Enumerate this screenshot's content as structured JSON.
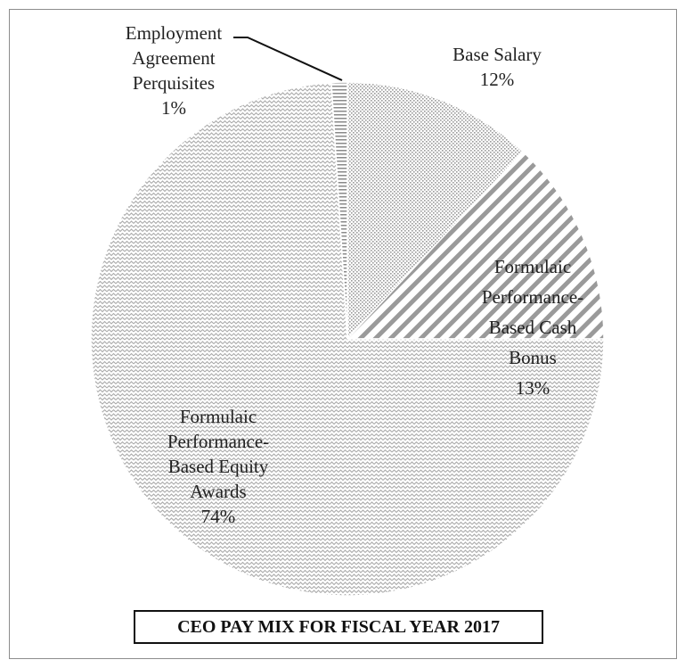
{
  "chart_data": {
    "type": "pie",
    "title": "CEO PAY MIX FOR FISCAL YEAR 2017",
    "slices": [
      {
        "name": "Base Salary",
        "value": 12,
        "label_lines": [
          "Base Salary",
          "12%"
        ],
        "pattern": "dots"
      },
      {
        "name": "Formulaic Performance-Based Cash Bonus",
        "value": 13,
        "label_lines": [
          "Formulaic",
          "Performance-",
          "Based Cash",
          "Bonus",
          "13%"
        ],
        "pattern": "diagonal-stripes"
      },
      {
        "name": "Formulaic Performance-Based Equity Awards",
        "value": 74,
        "label_lines": [
          "Formulaic",
          "Performance-",
          "Based Equity",
          "Awards",
          "74%"
        ],
        "pattern": "zigzag"
      },
      {
        "name": "Employment Agreement Perquisites",
        "value": 1,
        "label_lines": [
          "Employment",
          "Agreement",
          "Perquisites",
          "1%"
        ],
        "pattern": "horizontal-lines"
      }
    ]
  }
}
